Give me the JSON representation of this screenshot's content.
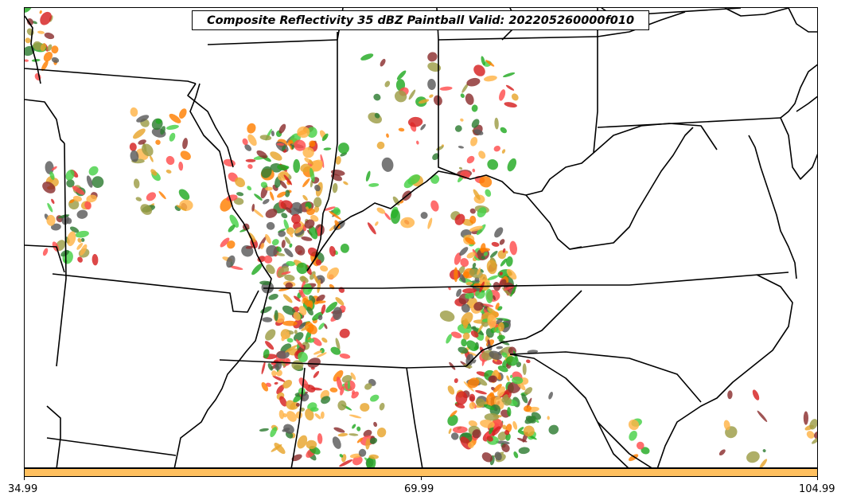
{
  "title": "Composite Reflectivity 35 dBZ Paintball Valid: 202205260000f010",
  "colors": {
    "member_palette": [
      "#ff4d4d",
      "#ffb347",
      "#47d147",
      "#8b2e2e",
      "#9c9c45",
      "#e8a52c",
      "#2e7d32",
      "#5a5a5a",
      "#d62020",
      "#ff7f00",
      "#22aa22"
    ],
    "colorbar_fill": "#ffc05f",
    "border": "#000000"
  },
  "colorbar": {
    "ticks": [
      "34.99",
      "69.99",
      "104.99"
    ]
  }
}
